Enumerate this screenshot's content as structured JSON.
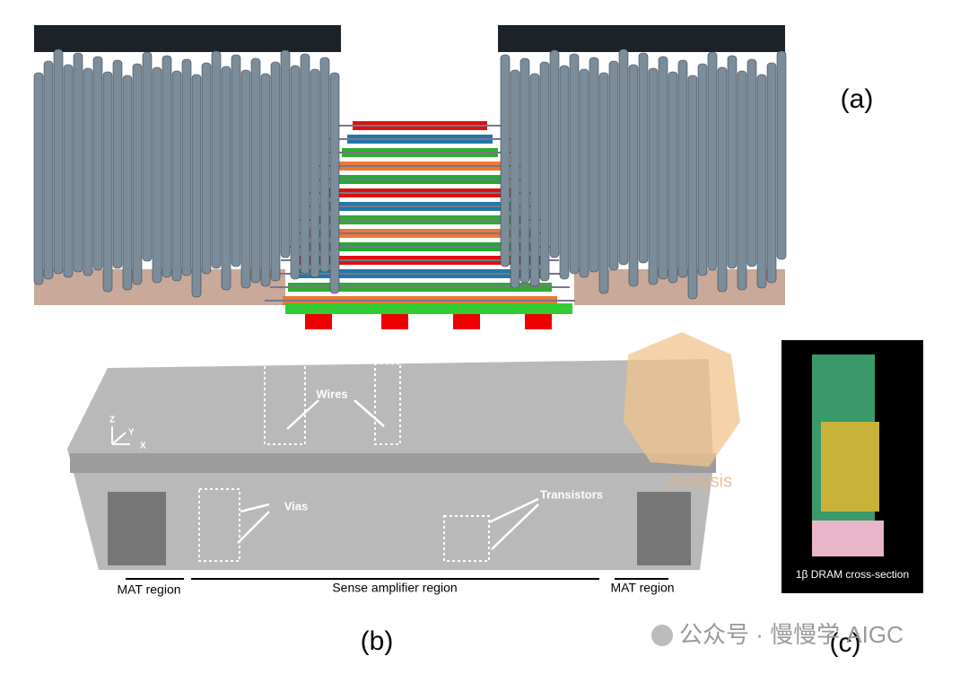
{
  "panels": {
    "a": {
      "label": "(a)"
    },
    "b": {
      "label": "(b)",
      "annotations": {
        "wires": "Wires",
        "vias": "Vias",
        "transistors": "Transistors"
      },
      "axes": {
        "x": "X",
        "y": "Y",
        "z": "Z"
      },
      "regions": {
        "mat_left": "MAT region",
        "sense_amp": "Sense amplifier region",
        "mat_right": "MAT region"
      },
      "watermark": "analysis"
    },
    "c": {
      "label": "(c)",
      "caption": "1β DRAM cross-section"
    }
  },
  "footer": {
    "watermark": "公众号 · 慢慢学 AIGC"
  }
}
